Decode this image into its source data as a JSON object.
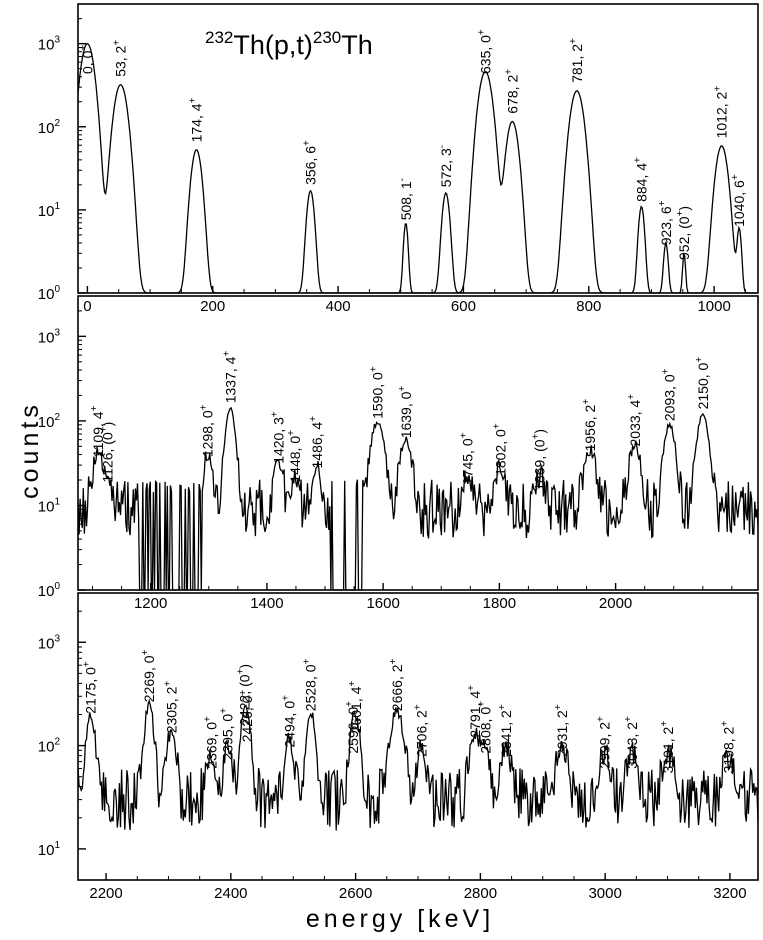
{
  "axes": {
    "xlabel": "energy [keV]",
    "ylabel": "counts"
  },
  "reaction": {
    "pre": "232",
    "a": "Th(p,t)",
    "mid": "230",
    "b": "Th"
  },
  "chart_data": [
    {
      "type": "line",
      "panel": "top",
      "xlim": [
        -15,
        1070
      ],
      "ylim": [
        1,
        3000
      ],
      "yscale": "log",
      "xticks": [
        0,
        200,
        400,
        600,
        800,
        1000
      ],
      "yticks": [
        {
          "v": 1,
          "e": "0"
        },
        {
          "v": 10,
          "e": "1"
        },
        {
          "v": 100,
          "e": "2"
        },
        {
          "v": 1000,
          "e": "3"
        }
      ],
      "baseline": 1,
      "noise": 0,
      "peaks": [
        {
          "e": 0,
          "h": 1000,
          "w": 9,
          "label": "0, 0",
          "sup": "+"
        },
        {
          "e": 53,
          "h": 320,
          "w": 9,
          "label": "53, 2",
          "sup": "+"
        },
        {
          "e": 174,
          "h": 52,
          "w": 7,
          "label": "174, 4",
          "sup": "+"
        },
        {
          "e": 356,
          "h": 16,
          "w": 5,
          "label": "356, 6",
          "sup": "+"
        },
        {
          "e": 508,
          "h": 6,
          "w": 3,
          "label": "508, 1",
          "sup": "-"
        },
        {
          "e": 572,
          "h": 15,
          "w": 5,
          "label": "572, 3",
          "sup": "-"
        },
        {
          "e": 635,
          "h": 460,
          "w": 9,
          "label": "635, 0",
          "sup": "+"
        },
        {
          "e": 678,
          "h": 115,
          "w": 8,
          "label": "678, 2",
          "sup": "+"
        },
        {
          "e": 781,
          "h": 270,
          "w": 9,
          "label": "781, 2",
          "sup": "+"
        },
        {
          "e": 884,
          "h": 10,
          "w": 4,
          "label": "884, 4",
          "sup": "+"
        },
        {
          "e": 923,
          "h": 3,
          "w": 3,
          "label": "923, 6",
          "sup": "+"
        },
        {
          "e": 952,
          "h": 2,
          "w": 2,
          "label": "952, (0",
          "sup": "+",
          "close": ")"
        },
        {
          "e": 1012,
          "h": 58,
          "w": 8,
          "label": "1012, 2",
          "sup": "+"
        },
        {
          "e": 1040,
          "h": 5,
          "w": 3,
          "label": "1040, 6",
          "sup": "+"
        }
      ]
    },
    {
      "type": "line",
      "panel": "middle",
      "xlim": [
        1075,
        2245
      ],
      "ylim": [
        1,
        3000
      ],
      "yscale": "log",
      "xticks": [
        1200,
        1400,
        1600,
        1800,
        2000
      ],
      "yticks": [
        {
          "v": 1,
          "e": "0"
        },
        {
          "v": 10,
          "e": "1"
        },
        {
          "v": 100,
          "e": "2"
        },
        {
          "v": 1000,
          "e": "3"
        }
      ],
      "baseline": 9,
      "noise": 0.35,
      "gaps": [
        [
          1180,
          1290
        ],
        [
          1510,
          1580
        ]
      ],
      "peaks": [
        {
          "e": 1109,
          "h": 30,
          "w": 7,
          "label": "1109, 4",
          "sup": "+"
        },
        {
          "e": 1126,
          "h": 15,
          "w": 6,
          "label": "1126, (0",
          "sup": "+",
          "close": ")"
        },
        {
          "e": 1298,
          "h": 30,
          "w": 6,
          "label": "1298, 0",
          "sup": "+"
        },
        {
          "e": 1337,
          "h": 130,
          "w": 7,
          "label": "1337, 4",
          "sup": "+"
        },
        {
          "e": 1420,
          "h": 25,
          "w": 6,
          "label": "1420, 3",
          "sup": "+"
        },
        {
          "e": 1448,
          "h": 15,
          "w": 5,
          "label": "1448, 0",
          "sup": "+"
        },
        {
          "e": 1486,
          "h": 22,
          "w": 6,
          "label": "1486, 4",
          "sup": "+"
        },
        {
          "e": 1590,
          "h": 85,
          "w": 9,
          "label": "1590, 0",
          "sup": "+"
        },
        {
          "e": 1639,
          "h": 50,
          "w": 8,
          "label": "1639, 0",
          "sup": "+"
        },
        {
          "e": 1745,
          "h": 14,
          "w": 7,
          "label": "1745, 0",
          "sup": "+"
        },
        {
          "e": 1802,
          "h": 18,
          "w": 7,
          "label": "1802, 0",
          "sup": "+"
        },
        {
          "e": 1869,
          "h": 12,
          "w": 7,
          "label": "1869, (0",
          "sup": "+",
          "close": ")"
        },
        {
          "e": 1956,
          "h": 35,
          "w": 8,
          "label": "1956, 2",
          "sup": "+"
        },
        {
          "e": 2033,
          "h": 40,
          "w": 8,
          "label": "2033, 4",
          "sup": "+"
        },
        {
          "e": 2093,
          "h": 80,
          "w": 8,
          "label": "2093, 0",
          "sup": "+"
        },
        {
          "e": 2150,
          "h": 110,
          "w": 8,
          "label": "2150, 0",
          "sup": "+"
        }
      ]
    },
    {
      "type": "line",
      "panel": "bottom",
      "xlim": [
        2155,
        3245
      ],
      "ylim": [
        5,
        3000
      ],
      "yscale": "log",
      "xticks": [
        2200,
        2400,
        2600,
        2800,
        3000,
        3200
      ],
      "yticks": [
        {
          "v": 10,
          "e": "1"
        },
        {
          "v": 100,
          "e": "2"
        },
        {
          "v": 1000,
          "e": "3"
        }
      ],
      "baseline": 30,
      "noise": 0.3,
      "peaks": [
        {
          "e": 2175,
          "h": 170,
          "w": 6,
          "label": "2175, 0",
          "sup": "+"
        },
        {
          "e": 2269,
          "h": 220,
          "w": 6,
          "label": "2269, 0",
          "sup": "+"
        },
        {
          "e": 2305,
          "h": 110,
          "w": 6,
          "label": "2305, 2",
          "sup": "+"
        },
        {
          "e": 2369,
          "h": 50,
          "w": 6,
          "label": "2369, 0",
          "sup": "+"
        },
        {
          "e": 2395,
          "h": 60,
          "w": 6,
          "label": "2395, 0",
          "sup": "+"
        },
        {
          "e": 2422,
          "h": 130,
          "w": 6,
          "label": "2422, (0",
          "sup": "+",
          "close": ")"
        },
        {
          "e": 2426,
          "h": 90,
          "w": 6,
          "label": "2426, 0",
          "sup": "+"
        },
        {
          "e": 2494,
          "h": 80,
          "w": 6,
          "label": "2494, 0",
          "sup": "+"
        },
        {
          "e": 2528,
          "h": 180,
          "w": 6,
          "label": "2528, 0",
          "sup": "+"
        },
        {
          "e": 2596,
          "h": 70,
          "w": 6,
          "label": "2596, 0",
          "sup": "+"
        },
        {
          "e": 2601,
          "h": 110,
          "w": 6,
          "label": "2601, 4",
          "sup": "+"
        },
        {
          "e": 2666,
          "h": 180,
          "w": 9,
          "label": "2666, 2",
          "sup": "+"
        },
        {
          "e": 2706,
          "h": 65,
          "w": 6,
          "label": "2706, 2",
          "sup": "+"
        },
        {
          "e": 2791,
          "h": 100,
          "w": 7,
          "label": "2791, 4",
          "sup": "+"
        },
        {
          "e": 2808,
          "h": 70,
          "w": 6,
          "label": "2808, 0",
          "sup": "+"
        },
        {
          "e": 2841,
          "h": 65,
          "w": 7,
          "label": "2841, 2",
          "sup": "+"
        },
        {
          "e": 2931,
          "h": 65,
          "w": 8,
          "label": "2931, 2",
          "sup": "+"
        },
        {
          "e": 2999,
          "h": 50,
          "w": 8,
          "label": "2999, 2",
          "sup": "+"
        },
        {
          "e": 3043,
          "h": 50,
          "w": 8,
          "label": "3043, 2",
          "sup": "+"
        },
        {
          "e": 3101,
          "h": 45,
          "w": 8,
          "label": "3101, 2",
          "sup": "+"
        },
        {
          "e": 3198,
          "h": 45,
          "w": 8,
          "label": "3198, 2",
          "sup": "+"
        }
      ]
    }
  ]
}
